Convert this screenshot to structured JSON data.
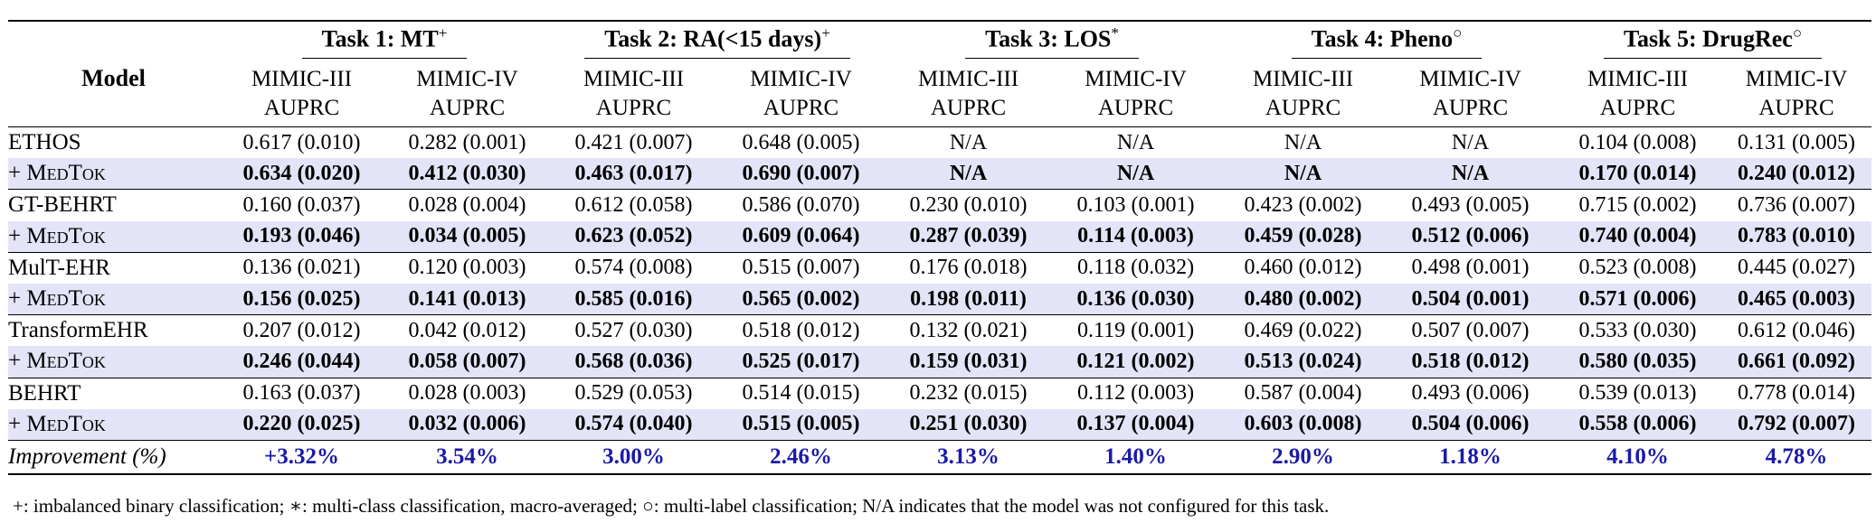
{
  "header": {
    "model_label": "Model",
    "tasks": [
      {
        "label": "Task 1: MT",
        "mark": "+"
      },
      {
        "label": "Task 2: RA(<15 days)",
        "mark": "+"
      },
      {
        "label": "Task 3: LOS",
        "mark": "*"
      },
      {
        "label": "Task 4: Pheno",
        "mark": "○"
      },
      {
        "label": "Task 5: DrugRec",
        "mark": "○"
      }
    ],
    "subcolumns": [
      {
        "dataset": "MIMIC-III",
        "metric": "AUPRC"
      },
      {
        "dataset": "MIMIC-IV",
        "metric": "AUPRC"
      }
    ]
  },
  "rows": [
    {
      "model": "ETHOS",
      "values": [
        "0.617 (0.010)",
        "0.282 (0.001)",
        "0.421 (0.007)",
        "0.648 (0.005)",
        "N/A",
        "N/A",
        "N/A",
        "N/A",
        "0.104 (0.008)",
        "0.131 (0.005)"
      ]
    },
    {
      "model_prefix": "+ ",
      "model": "MedTok",
      "values": [
        "0.634 (0.020)",
        "0.412 (0.030)",
        "0.463 (0.017)",
        "0.690 (0.007)",
        "N/A",
        "N/A",
        "N/A",
        "N/A",
        "0.170 (0.014)",
        "0.240 (0.012)"
      ]
    },
    {
      "model": "GT-BEHRT",
      "values": [
        "0.160 (0.037)",
        "0.028 (0.004)",
        "0.612 (0.058)",
        "0.586 (0.070)",
        "0.230 (0.010)",
        "0.103 (0.001)",
        "0.423 (0.002)",
        "0.493 (0.005)",
        "0.715 (0.002)",
        "0.736 (0.007)"
      ]
    },
    {
      "model_prefix": "+ ",
      "model": "MedTok",
      "values": [
        "0.193 (0.046)",
        "0.034 (0.005)",
        "0.623 (0.052)",
        "0.609 (0.064)",
        "0.287 (0.039)",
        "0.114 (0.003)",
        "0.459 (0.028)",
        "0.512 (0.006)",
        "0.740 (0.004)",
        "0.783 (0.010)"
      ]
    },
    {
      "model": "MulT-EHR",
      "values": [
        "0.136 (0.021)",
        "0.120 (0.003)",
        "0.574 (0.008)",
        "0.515 (0.007)",
        "0.176 (0.018)",
        "0.118 (0.032)",
        "0.460 (0.012)",
        "0.498 (0.001)",
        "0.523 (0.008)",
        "0.445 (0.027)"
      ]
    },
    {
      "model_prefix": "+ ",
      "model": "MedTok",
      "values": [
        "0.156 (0.025)",
        "0.141 (0.013)",
        "0.585 (0.016)",
        "0.565 (0.002)",
        "0.198 (0.011)",
        "0.136 (0.030)",
        "0.480 (0.002)",
        "0.504 (0.001)",
        "0.571 (0.006)",
        "0.465 (0.003)"
      ]
    },
    {
      "model": "TransformEHR",
      "values": [
        "0.207 (0.012)",
        "0.042 (0.012)",
        "0.527 (0.030)",
        "0.518 (0.012)",
        "0.132 (0.021)",
        "0.119 (0.001)",
        "0.469 (0.022)",
        "0.507 (0.007)",
        "0.533 (0.030)",
        "0.612 (0.046)"
      ]
    },
    {
      "model_prefix": "+ ",
      "model": "MedTok",
      "values": [
        "0.246 (0.044)",
        "0.058 (0.007)",
        "0.568 (0.036)",
        "0.525 (0.017)",
        "0.159 (0.031)",
        "0.121 (0.002)",
        "0.513 (0.024)",
        "0.518 (0.012)",
        "0.580 (0.035)",
        "0.661 (0.092)"
      ]
    },
    {
      "model": "BEHRT",
      "values": [
        "0.163 (0.037)",
        "0.028 (0.003)",
        "0.529 (0.053)",
        "0.514 (0.015)",
        "0.232 (0.015)",
        "0.112 (0.003)",
        "0.587 (0.004)",
        "0.493 (0.006)",
        "0.539 (0.013)",
        "0.778 (0.014)"
      ]
    },
    {
      "model_prefix": "+ ",
      "model": "MedTok",
      "values": [
        "0.220 (0.025)",
        "0.032 (0.006)",
        "0.574 (0.040)",
        "0.515 (0.005)",
        "0.251 (0.030)",
        "0.137 (0.004)",
        "0.603 (0.008)",
        "0.504 (0.006)",
        "0.558 (0.006)",
        "0.792 (0.007)"
      ]
    }
  ],
  "improvement": {
    "label": "Improvement (%)",
    "values": [
      "+3.32%",
      "3.54%",
      "3.00%",
      "2.46%",
      "3.13%",
      "1.40%",
      "2.90%",
      "1.18%",
      "4.10%",
      "4.78%"
    ]
  },
  "colors": {
    "highlight_row": "#e4e4f8",
    "improvement_text": "#1a1aa8"
  },
  "footnote": "+: imbalanced binary classification; ∗: multi-class classification, macro-averaged; ○: multi-label classification; N/A indicates that the model was not configured for this task."
}
